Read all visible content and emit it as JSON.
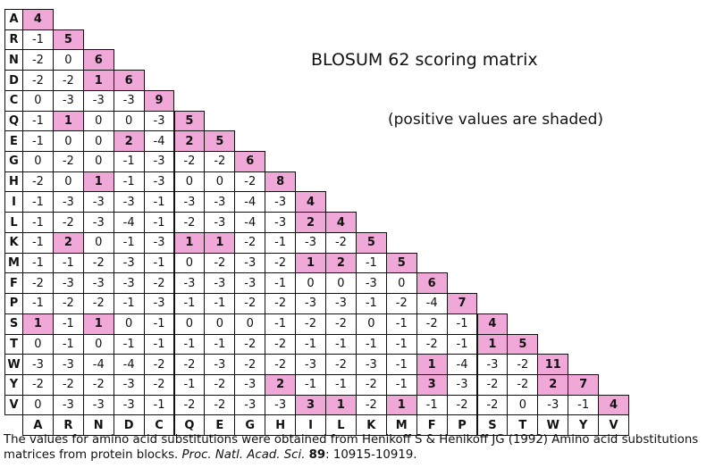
{
  "title": "BLOSUM 62 scoring matrix",
  "subtitle": "(positive values are shaded)",
  "caption": {
    "part1": "The values for amino acid substitutions were obtained from Henikoff S & Henikoff JG (1992) Amino acid substitutions matrices from protein blocks. ",
    "journal": "Proc. Natl. Acad. Sci.",
    "space": " ",
    "volume": "89",
    "pages": ": 10915-10919."
  },
  "amino_acids": [
    "A",
    "R",
    "N",
    "D",
    "C",
    "Q",
    "E",
    "G",
    "H",
    "I",
    "L",
    "K",
    "M",
    "F",
    "P",
    "S",
    "T",
    "W",
    "Y",
    "V"
  ],
  "matrix_rows": [
    [
      4
    ],
    [
      -1,
      5
    ],
    [
      -2,
      0,
      6
    ],
    [
      -2,
      -2,
      1,
      6
    ],
    [
      0,
      -3,
      -3,
      -3,
      9
    ],
    [
      -1,
      1,
      0,
      0,
      -3,
      5
    ],
    [
      -1,
      0,
      0,
      2,
      -4,
      2,
      5
    ],
    [
      0,
      -2,
      0,
      -1,
      -3,
      -2,
      -2,
      6
    ],
    [
      -2,
      0,
      1,
      -1,
      -3,
      0,
      0,
      -2,
      8
    ],
    [
      -1,
      -3,
      -3,
      -3,
      -1,
      -3,
      -3,
      -4,
      -3,
      4
    ],
    [
      -1,
      -2,
      -3,
      -4,
      -1,
      -2,
      -3,
      -4,
      -3,
      2,
      4
    ],
    [
      -1,
      2,
      0,
      -1,
      -3,
      1,
      1,
      -2,
      -1,
      -3,
      -2,
      5
    ],
    [
      -1,
      -1,
      -2,
      -3,
      -1,
      0,
      -2,
      -3,
      -2,
      1,
      2,
      -1,
      5
    ],
    [
      -2,
      -3,
      -3,
      -3,
      -2,
      -3,
      -3,
      -3,
      -1,
      0,
      0,
      -3,
      0,
      6
    ],
    [
      -1,
      -2,
      -2,
      -1,
      -3,
      -1,
      -1,
      -2,
      -2,
      -3,
      -3,
      -1,
      -2,
      -4,
      7
    ],
    [
      1,
      -1,
      1,
      0,
      -1,
      0,
      0,
      0,
      -1,
      -2,
      -2,
      0,
      -1,
      -2,
      -1,
      4
    ],
    [
      0,
      -1,
      0,
      -1,
      -1,
      -1,
      -1,
      -2,
      -2,
      -1,
      -1,
      -1,
      -1,
      -2,
      -1,
      1,
      5
    ],
    [
      -3,
      -3,
      -4,
      -4,
      -2,
      -2,
      -3,
      -2,
      -2,
      -3,
      -2,
      -3,
      -1,
      1,
      -4,
      -3,
      -2,
      11
    ],
    [
      -2,
      -2,
      -2,
      -3,
      -2,
      -1,
      -2,
      -3,
      2,
      -1,
      -1,
      -2,
      -1,
      3,
      -3,
      -2,
      -2,
      2,
      7
    ],
    [
      0,
      -3,
      -3,
      -3,
      -1,
      -2,
      -2,
      -3,
      -3,
      3,
      1,
      -2,
      1,
      -1,
      -2,
      -2,
      0,
      -3,
      -1,
      4
    ]
  ],
  "colors": {
    "positive": "#f0a8d8",
    "border": "#111111"
  }
}
